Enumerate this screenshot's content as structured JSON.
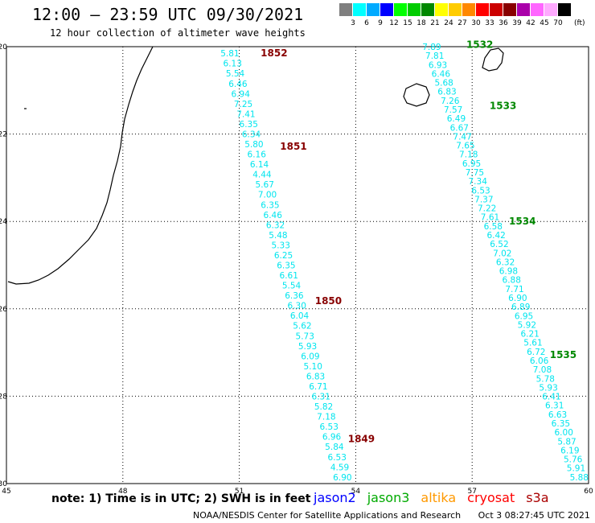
{
  "header": {
    "title": "12:00 – 23:59 UTC 09/30/2021",
    "subtitle": "12 hour collection of altimeter wave heights"
  },
  "legend": {
    "unit": "(ft)",
    "colors": [
      "#7f7f7f",
      "#00ffff",
      "#00aaff",
      "#0000ff",
      "#00ff00",
      "#00cc00",
      "#008800",
      "#ffff00",
      "#ffcc00",
      "#ff8800",
      "#ff0000",
      "#cc0000",
      "#880000",
      "#aa00aa",
      "#ff66ff",
      "#ffaaff",
      "#000000"
    ],
    "labels": [
      "3",
      "6",
      "9",
      "12",
      "15",
      "18",
      "21",
      "24",
      "27",
      "30",
      "33",
      "36",
      "39",
      "42",
      "45",
      "70"
    ]
  },
  "axes": {
    "lon_ticks": [
      "45",
      "48",
      "51",
      "54",
      "57",
      "60"
    ],
    "lat_ticks": [
      "-20",
      "-22",
      "-24",
      "-26",
      "-28",
      "-30"
    ],
    "lon_range": [
      45,
      60
    ],
    "lat_range": [
      -30,
      -20
    ]
  },
  "tracks": [
    {
      "satellite": "cryosat",
      "color": "#00e5ee",
      "start": [
        51.0,
        -20.15
      ],
      "end": [
        53.9,
        -29.85
      ],
      "values": [
        "5.81",
        "6.13",
        "5.54",
        "6.46",
        "6.94",
        "7.25",
        "7.41",
        "6.35",
        "6.34",
        "5.80",
        "6.16",
        "6.14",
        "4.44",
        "5.67",
        "7.00",
        "6.35",
        "6.46",
        "6.32",
        "5.48",
        "5.33",
        "6.25",
        "6.35",
        "6.61",
        "5.54",
        "6.36",
        "6.30",
        "6.04",
        "5.62",
        "5.73",
        "5.93",
        "6.09",
        "5.10",
        "6.83",
        "6.71",
        "6.31",
        "5.82",
        "7.18",
        "6.53",
        "6.96",
        "5.84",
        "6.53",
        "4.59",
        "6.90"
      ],
      "time_labels": [
        {
          "text": "1852",
          "lon": 51.55,
          "lat": -20.15
        },
        {
          "text": "1851",
          "lon": 52.05,
          "lat": -22.28
        },
        {
          "text": "1850",
          "lon": 52.95,
          "lat": -25.82
        },
        {
          "text": "1849",
          "lon": 53.8,
          "lat": -28.98
        }
      ]
    },
    {
      "satellite": "jason3",
      "color": "#00e5ee",
      "start": [
        56.2,
        -20.0
      ],
      "end": [
        60.0,
        -29.85
      ],
      "values": [
        "7.89",
        "7.81",
        "6.93",
        "6.46",
        "5.68",
        "6.83",
        "7.26",
        "7.57",
        "6.49",
        "6.67",
        "7.47",
        "7.65",
        "7.18",
        "6.95",
        "7.75",
        "7.34",
        "6.53",
        "7.37",
        "7.22",
        "7.61",
        "6.58",
        "6.42",
        "6.52",
        "7.02",
        "6.32",
        "6.98",
        "6.88",
        "7.71",
        "6.90",
        "6.89",
        "6.95",
        "5.92",
        "6.21",
        "5.61",
        "6.72",
        "6.06",
        "7.08",
        "5.78",
        "5.93",
        "6.41",
        "6.31",
        "6.63",
        "6.35",
        "6.00",
        "5.87",
        "6.19",
        "5.76",
        "5.91",
        "5.88"
      ],
      "time_labels": [
        {
          "text": "1532",
          "lon": 56.85,
          "lat": -19.95
        },
        {
          "text": "1533",
          "lon": 57.45,
          "lat": -21.35
        },
        {
          "text": "1534",
          "lon": 57.95,
          "lat": -24.0
        },
        {
          "text": "1535",
          "lon": 59.0,
          "lat": -27.05
        }
      ]
    }
  ],
  "time_label_color_cryosat": "#880000",
  "time_label_color_jason3": "#008800",
  "note": "note:  1) Time is in UTC; 2) SWH is in feet",
  "satellites": [
    {
      "name": "jason2",
      "color": "#0000ff"
    },
    {
      "name": "jason3",
      "color": "#00aa00"
    },
    {
      "name": "altika",
      "color": "#ff9900"
    },
    {
      "name": "cryosat",
      "color": "#ff0000"
    },
    {
      "name": "s3a",
      "color": "#aa0000"
    }
  ],
  "footer": {
    "org": "NOAA/NESDIS Center for Satellite Applications and Research",
    "timestamp": "Oct  3 08:27:45 UTC 2021"
  }
}
